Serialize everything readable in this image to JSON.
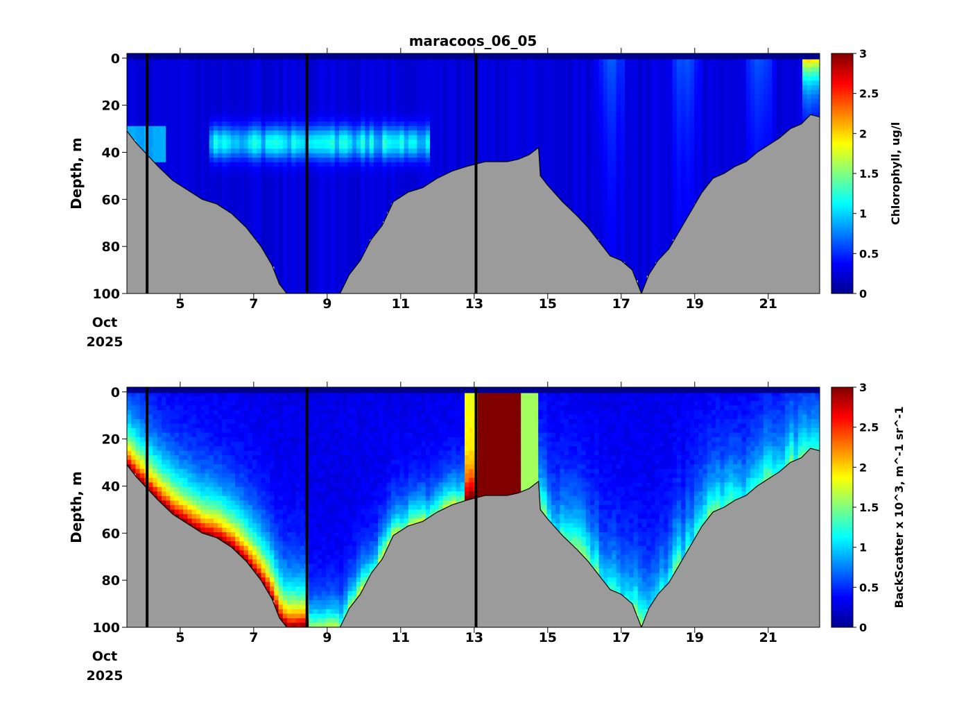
{
  "figure_title": "maracoos_06_05",
  "date_label": {
    "month": "Oct",
    "year": "2025"
  },
  "colormap": "jet",
  "colors": {
    "seafloor": "#9b9b9b",
    "frame": "#000000"
  },
  "chart_data": [
    {
      "type": "heatmap",
      "name": "chlorophyll-section",
      "title": "maracoos_06_05",
      "xlabel": "",
      "ylabel": "Depth, m",
      "colorbar_label": "Chlorophyll, ug/l",
      "x_unit": "day of October 2025",
      "xlim": [
        3.55,
        22.4
      ],
      "ylim": [
        100,
        -2
      ],
      "y_reversed": true,
      "x_ticks": [
        5,
        7,
        9,
        11,
        13,
        15,
        17,
        19,
        21
      ],
      "x_tick_labels": [
        "5",
        "7",
        "9",
        "11",
        "13",
        "15",
        "17",
        "19",
        "21"
      ],
      "y_ticks": [
        0,
        20,
        40,
        60,
        80,
        100
      ],
      "y_tick_labels": [
        "0",
        "20",
        "40",
        "60",
        "80",
        "100"
      ],
      "clim": [
        0,
        3
      ],
      "cbar_ticks": [
        0,
        0.5,
        1,
        1.5,
        2,
        2.5,
        3
      ],
      "cbar_tick_labels": [
        "0",
        "0.5",
        "1",
        "1.5",
        "2",
        "2.5",
        "3"
      ],
      "vertical_markers_day": [
        4.1,
        8.45,
        13.05
      ],
      "features": [
        {
          "description": "chlorophyll maximum layer",
          "x_range": [
            6.0,
            11.5
          ],
          "depth_m": 36,
          "value": 1.1
        },
        {
          "description": "surface bloom near end",
          "x_range": [
            22.0,
            22.4
          ],
          "depth_m": 10,
          "value": 2.0
        },
        {
          "description": "background",
          "value": 0.3
        }
      ]
    },
    {
      "type": "heatmap",
      "name": "backscatter-section",
      "xlabel": "",
      "ylabel": "Depth, m",
      "colorbar_label": "BackScatter x 10^3, m^-1 sr^-1",
      "x_unit": "day of October 2025",
      "xlim": [
        3.55,
        22.4
      ],
      "ylim": [
        100,
        -2
      ],
      "y_reversed": true,
      "x_ticks": [
        5,
        7,
        9,
        11,
        13,
        15,
        17,
        19,
        21
      ],
      "x_tick_labels": [
        "5",
        "7",
        "9",
        "11",
        "13",
        "15",
        "17",
        "19",
        "21"
      ],
      "y_ticks": [
        0,
        20,
        40,
        60,
        80,
        100
      ],
      "y_tick_labels": [
        "0",
        "20",
        "40",
        "60",
        "80",
        "100"
      ],
      "clim": [
        0,
        3
      ],
      "cbar_ticks": [
        0,
        0.5,
        1,
        1.5,
        2,
        2.5,
        3
      ],
      "cbar_tick_labels": [
        "0",
        "0.5",
        "1",
        "1.5",
        "2",
        "2.5",
        "3"
      ],
      "vertical_markers_day": [
        4.1,
        8.45,
        13.05
      ],
      "features": [
        {
          "description": "high backscatter bottom layer",
          "x_range": [
            3.55,
            8.4
          ],
          "value": 2.6
        },
        {
          "description": "saturated water column",
          "x_range": [
            13.05,
            14.3
          ],
          "value": 3.0
        },
        {
          "description": "mid-section near-bottom increase",
          "x_range": [
            9.0,
            21.5
          ],
          "value": 1.2
        },
        {
          "description": "background",
          "value": 0.3
        }
      ]
    }
  ],
  "seafloor_depth_m": {
    "x": [
      3.55,
      3.8,
      4.1,
      4.4,
      4.8,
      5.2,
      5.6,
      6.0,
      6.4,
      6.8,
      7.2,
      7.5,
      7.7,
      7.9,
      8.2,
      8.45,
      8.8,
      9.1,
      9.35,
      9.6,
      9.9,
      10.2,
      10.5,
      10.8,
      11.2,
      11.6,
      12.0,
      12.4,
      12.8,
      13.05,
      13.3,
      13.6,
      13.9,
      14.2,
      14.5,
      14.75,
      14.8,
      15.0,
      15.4,
      15.8,
      16.1,
      16.4,
      16.7,
      17.0,
      17.3,
      17.55,
      17.75,
      18.0,
      18.3,
      18.6,
      18.9,
      19.2,
      19.5,
      19.8,
      20.1,
      20.4,
      20.7,
      21.0,
      21.3,
      21.6,
      21.9,
      22.15,
      22.4
    ],
    "y": [
      31,
      36,
      41,
      46,
      52,
      56,
      60,
      62,
      66,
      72,
      80,
      88,
      96,
      100,
      100,
      100,
      100,
      100,
      100,
      92,
      86,
      77,
      71,
      61,
      57,
      55,
      51,
      48,
      46,
      45,
      44,
      44,
      44,
      43,
      41,
      38,
      50,
      54,
      61,
      67,
      72,
      78,
      84,
      86,
      90,
      100,
      92,
      86,
      81,
      73,
      65,
      57,
      51,
      49,
      46,
      44,
      40,
      37,
      34,
      30,
      28,
      24,
      25
    ]
  }
}
